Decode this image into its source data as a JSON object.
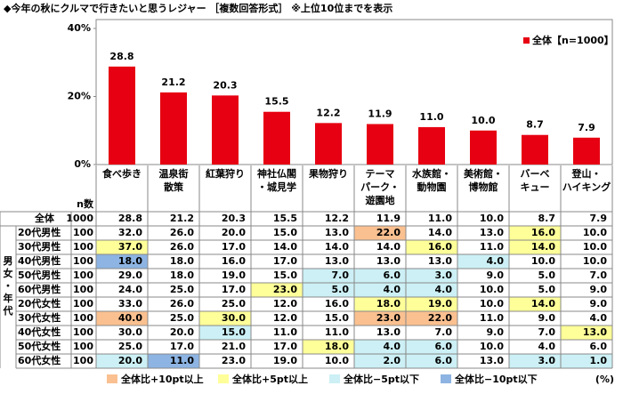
{
  "chart_data": {
    "type": "bar",
    "title": "◆今年の秋にクルマで行きたいと思うレジャー ［複数回答形式］ ※上位10位までを表示",
    "categories": [
      "食べ歩き",
      "温泉街\n散策",
      "紅葉狩り",
      "神社仏閣\n・城見学",
      "果物狩り",
      "テーマ\nパーク・\n遊園地",
      "水族館・\n動物園",
      "美術館・\n博物館",
      "バーベ\nキュー",
      "登山・\nハイキング"
    ],
    "values": [
      28.8,
      21.2,
      20.3,
      15.5,
      12.2,
      11.9,
      11.0,
      10.0,
      8.7,
      7.9
    ],
    "value_labels": [
      "28.8",
      "21.2",
      "20.3",
      "15.5",
      "12.2",
      "11.9",
      "11.0",
      "10.0",
      "8.7",
      "7.9"
    ],
    "color": "#e60012",
    "legend": "全体【n=1000】",
    "legend_position": "top-right",
    "ylim": [
      0,
      40
    ],
    "yticks": [
      {
        "value": 0,
        "label": "0%"
      },
      {
        "value": 20,
        "label": "20%"
      },
      {
        "value": 40,
        "label": "40%"
      }
    ]
  },
  "table": {
    "n_header": "n数",
    "group_label": "男女・年代",
    "unit": "(%)",
    "legend": [
      {
        "label": "全体比+10pt以上",
        "color": "#fac090"
      },
      {
        "label": "全体比+5pt以上",
        "color": "#ffff99"
      },
      {
        "label": "全体比−5pt以下",
        "color": "#ccf0f5"
      },
      {
        "label": "全体比−10pt以下",
        "color": "#8db4e2"
      }
    ],
    "rows": [
      {
        "label": "全体",
        "n": "1000",
        "cells": [
          "28.8",
          "21.2",
          "20.3",
          "15.5",
          "12.2",
          "11.9",
          "11.0",
          "10.0",
          "8.7",
          "7.9"
        ],
        "highlight": [
          null,
          null,
          null,
          null,
          null,
          null,
          null,
          null,
          null,
          null
        ]
      },
      {
        "label": "20代男性",
        "n": "100",
        "cells": [
          "32.0",
          "26.0",
          "20.0",
          "15.0",
          "13.0",
          "22.0",
          "14.0",
          "13.0",
          "16.0",
          "10.0"
        ],
        "highlight": [
          null,
          null,
          null,
          null,
          null,
          0,
          null,
          null,
          1,
          null
        ]
      },
      {
        "label": "30代男性",
        "n": "100",
        "cells": [
          "37.0",
          "26.0",
          "17.0",
          "14.0",
          "14.0",
          "14.0",
          "16.0",
          "11.0",
          "14.0",
          "10.0"
        ],
        "highlight": [
          1,
          null,
          null,
          null,
          null,
          null,
          1,
          null,
          1,
          null
        ]
      },
      {
        "label": "40代男性",
        "n": "100",
        "cells": [
          "18.0",
          "18.0",
          "16.0",
          "17.0",
          "13.0",
          "13.0",
          "13.0",
          "4.0",
          "10.0",
          "10.0"
        ],
        "highlight": [
          3,
          null,
          null,
          null,
          null,
          null,
          null,
          2,
          null,
          null
        ]
      },
      {
        "label": "50代男性",
        "n": "100",
        "cells": [
          "29.0",
          "18.0",
          "19.0",
          "15.0",
          "7.0",
          "6.0",
          "3.0",
          "9.0",
          "5.0",
          "7.0"
        ],
        "highlight": [
          null,
          null,
          null,
          null,
          2,
          2,
          2,
          null,
          null,
          null
        ]
      },
      {
        "label": "60代男性",
        "n": "100",
        "cells": [
          "24.0",
          "25.0",
          "17.0",
          "23.0",
          "5.0",
          "4.0",
          "4.0",
          "10.0",
          "5.0",
          "9.0"
        ],
        "highlight": [
          null,
          null,
          null,
          1,
          2,
          2,
          2,
          null,
          null,
          null
        ]
      },
      {
        "label": "20代女性",
        "n": "100",
        "cells": [
          "33.0",
          "26.0",
          "25.0",
          "12.0",
          "16.0",
          "18.0",
          "19.0",
          "10.0",
          "14.0",
          "9.0"
        ],
        "highlight": [
          null,
          null,
          null,
          null,
          null,
          1,
          1,
          null,
          1,
          null
        ]
      },
      {
        "label": "30代女性",
        "n": "100",
        "cells": [
          "40.0",
          "25.0",
          "30.0",
          "12.0",
          "15.0",
          "23.0",
          "22.0",
          "11.0",
          "9.0",
          "4.0"
        ],
        "highlight": [
          0,
          null,
          1,
          null,
          null,
          0,
          0,
          null,
          null,
          null
        ]
      },
      {
        "label": "40代女性",
        "n": "100",
        "cells": [
          "30.0",
          "20.0",
          "15.0",
          "11.0",
          "11.0",
          "13.0",
          "7.0",
          "9.0",
          "7.0",
          "13.0"
        ],
        "highlight": [
          null,
          null,
          2,
          null,
          null,
          null,
          null,
          null,
          null,
          1
        ]
      },
      {
        "label": "50代女性",
        "n": "100",
        "cells": [
          "25.0",
          "17.0",
          "21.0",
          "17.0",
          "18.0",
          "4.0",
          "6.0",
          "10.0",
          "4.0",
          "6.0"
        ],
        "highlight": [
          null,
          null,
          null,
          null,
          1,
          2,
          2,
          null,
          null,
          null
        ]
      },
      {
        "label": "60代女性",
        "n": "100",
        "cells": [
          "20.0",
          "11.0",
          "23.0",
          "19.0",
          "10.0",
          "2.0",
          "6.0",
          "13.0",
          "3.0",
          "1.0"
        ],
        "highlight": [
          2,
          3,
          null,
          null,
          null,
          2,
          2,
          null,
          2,
          2
        ]
      }
    ]
  }
}
